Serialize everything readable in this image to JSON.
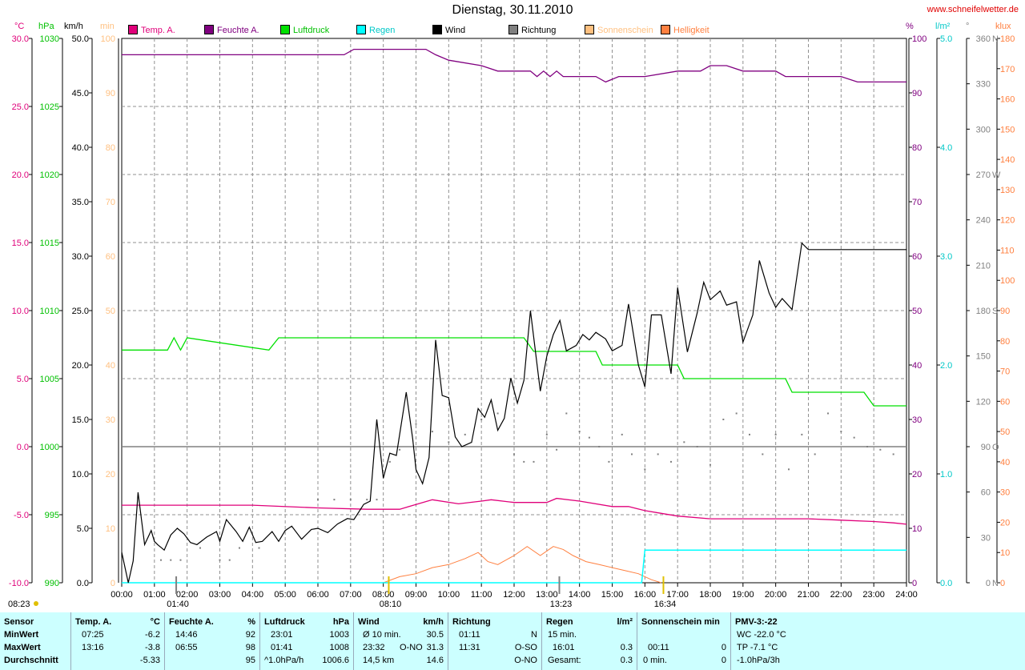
{
  "title": "Dienstag, 30.11.2010",
  "website": "www.schneifelwetter.de",
  "legend": [
    {
      "label": "Temp. A.",
      "color": "#e0007a"
    },
    {
      "label": "Feuchte A.",
      "color": "#800080"
    },
    {
      "label": "Luftdruck",
      "color": "#00e000"
    },
    {
      "label": "Regen",
      "color": "#00ffff"
    },
    {
      "label": "Wind",
      "color": "#000000"
    },
    {
      "label": "Richtung",
      "color": "#808080"
    },
    {
      "label": "Sonnenschein",
      "color": "#ffc080"
    },
    {
      "label": "Helligkeit",
      "color": "#ff8040"
    }
  ],
  "units": {
    "temp": "°C",
    "pressure": "hPa",
    "wind": "km/h",
    "sun": "min",
    "humidity": "%",
    "rain": "l/m²",
    "direction": "°",
    "light": "klux"
  },
  "colors": {
    "temp": "#e0007a",
    "humidity": "#800080",
    "pressure": "#00e000",
    "rain": "#00ffff",
    "wind": "#000000",
    "direction": "#808080",
    "sun": "#ffc080",
    "light": "#ff8040"
  },
  "chart_data": {
    "type": "line",
    "x_range": [
      "00:00",
      "24:00"
    ],
    "x_tick_labels": [
      "00:00",
      "01:00",
      "02:00",
      "03:00",
      "04:00",
      "05:00",
      "06:00",
      "07:00",
      "08:00",
      "09:00",
      "10:00",
      "11:00",
      "12:00",
      "13:00",
      "14:00",
      "15:00",
      "16:00",
      "17:00",
      "18:00",
      "19:00",
      "20:00",
      "21:00",
      "22:00",
      "23:00",
      "24:00"
    ],
    "axes": {
      "temp": {
        "range": [
          -10,
          30
        ],
        "ticks": [
          "-10.0",
          "-5.0",
          "0.0",
          "5.0",
          "10.0",
          "15.0",
          "20.0",
          "25.0",
          "30.0"
        ]
      },
      "pressure": {
        "range": [
          990,
          1030
        ],
        "ticks": [
          "990",
          "995",
          "1000",
          "1005",
          "1010",
          "1015",
          "1020",
          "1025",
          "1030"
        ]
      },
      "wind": {
        "range": [
          0,
          50
        ],
        "ticks": [
          "0.0",
          "5.0",
          "10.0",
          "15.0",
          "20.0",
          "25.0",
          "30.0",
          "35.0",
          "40.0",
          "45.0",
          "50.0"
        ]
      },
      "sun": {
        "range": [
          0,
          100
        ],
        "ticks": [
          "0",
          "10",
          "20",
          "30",
          "40",
          "50",
          "60",
          "70",
          "80",
          "90",
          "100"
        ]
      },
      "humidity": {
        "range": [
          0,
          100
        ],
        "ticks": [
          "0",
          "10",
          "20",
          "30",
          "40",
          "50",
          "60",
          "70",
          "80",
          "90",
          "100"
        ]
      },
      "rain": {
        "range": [
          0,
          5
        ],
        "ticks": [
          "0.0",
          "1.0",
          "2.0",
          "3.0",
          "4.0",
          "5.0"
        ]
      },
      "direction": {
        "range": [
          0,
          360
        ],
        "ticks": [
          "0",
          "N",
          "30",
          "60",
          "90",
          "O",
          "120",
          "150",
          "180",
          "S",
          "210",
          "240",
          "270",
          "W",
          "300",
          "330",
          "360",
          "N"
        ]
      },
      "light": {
        "range": [
          0,
          180
        ],
        "ticks": [
          "0",
          "10",
          "20",
          "30",
          "40",
          "50",
          "60",
          "70",
          "80",
          "90",
          "100",
          "110",
          "120",
          "130",
          "140",
          "150",
          "160",
          "170",
          "180"
        ]
      }
    },
    "markers": {
      "sunrise_time": "08:23",
      "sunset_time": "16:34",
      "moonset_label": "01:40",
      "sunrise_label": "08:10",
      "moonrise_label": "13:23",
      "sunset_label": "16:34"
    },
    "series": {
      "wind_speed": {
        "x": [
          0,
          0.2,
          0.35,
          0.5,
          0.7,
          0.9,
          1.0,
          1.1,
          1.3,
          1.5,
          1.7,
          1.9,
          2.1,
          2.3,
          2.6,
          2.9,
          3.0,
          3.2,
          3.5,
          3.7,
          3.9,
          4.1,
          4.3,
          4.6,
          4.8,
          5.0,
          5.2,
          5.5,
          5.8,
          6.0,
          6.3,
          6.6,
          6.9,
          7.1,
          7.4,
          7.6,
          7.8,
          8.0,
          8.2,
          8.4,
          8.7,
          8.9,
          9.0,
          9.2,
          9.4,
          9.6,
          9.8,
          10.0,
          10.2,
          10.4,
          10.7,
          10.9,
          11.1,
          11.3,
          11.5,
          11.7,
          11.9,
          12.1,
          12.3,
          12.5,
          12.8,
          13.0,
          13.2,
          13.4,
          13.6,
          13.9,
          14.1,
          14.3,
          14.5,
          14.8,
          15.0,
          15.3,
          15.5,
          15.8,
          16.0,
          16.2,
          16.5,
          16.8,
          17.0,
          17.3,
          17.6,
          17.8,
          18.0,
          18.3,
          18.5,
          18.8,
          19.0,
          19.3,
          19.5,
          19.8,
          20.0,
          20.2,
          20.5,
          20.8,
          21.0,
          21.3,
          21.5,
          21.8,
          22.0,
          22.3,
          22.5,
          22.8,
          23.0,
          23.3,
          23.5,
          23.8,
          24.0
        ],
        "y": [
          2.8,
          0.0,
          2.0,
          8.3,
          3.5,
          4.8,
          3.8,
          3.5,
          3.0,
          4.4,
          5.0,
          4.5,
          3.7,
          3.5,
          4.2,
          4.7,
          3.8,
          5.8,
          4.7,
          3.8,
          5.1,
          3.7,
          3.8,
          4.7,
          3.8,
          4.8,
          5.2,
          4.0,
          4.9,
          5.0,
          4.6,
          5.4,
          5.9,
          5.8,
          7.2,
          7.5,
          15.0,
          9.6,
          11.9,
          11.7,
          17.5,
          13.2,
          10.4,
          9.1,
          11.5,
          22.3,
          17.2,
          17.0,
          13.4,
          12.5,
          12.9,
          16.0,
          15.2,
          16.8,
          14.0,
          15.1,
          18.8,
          16.5,
          18.6,
          25.0,
          17.6,
          20.8,
          22.8,
          24.1,
          21.3,
          21.8,
          22.8,
          22.3,
          23.0,
          22.4,
          21.3,
          21.8,
          25.6,
          20.0,
          18.0,
          24.6,
          24.6,
          19.2,
          27.1,
          21.2,
          24.8,
          27.6,
          26.0,
          26.8,
          25.5,
          25.8,
          22.1,
          24.6,
          29.6,
          26.6,
          25.3,
          26.1,
          25.1,
          31.2,
          30.6,
          30.6,
          30.6,
          30.6,
          30.6,
          30.6,
          30.6,
          30.6,
          30.6,
          30.6,
          30.6,
          30.6,
          30.6
        ]
      },
      "temperature": {
        "x": [
          0,
          2,
          4,
          6,
          7.5,
          8.5,
          9.5,
          10.3,
          11.0,
          11.3,
          12.0,
          13.0,
          13.3,
          14.0,
          15.0,
          15.5,
          16.0,
          16.5,
          17.0,
          18.0,
          20.0,
          21.0,
          22.0,
          23.0,
          23.6,
          24.0
        ],
        "y": [
          -4.3,
          -4.3,
          -4.3,
          -4.5,
          -4.6,
          -4.6,
          -3.9,
          -4.2,
          -4.0,
          -3.9,
          -4.1,
          -4.1,
          -3.8,
          -4.0,
          -4.4,
          -4.4,
          -4.7,
          -4.9,
          -5.1,
          -5.3,
          -5.3,
          -5.3,
          -5.4,
          -5.5,
          -5.6,
          -5.7
        ]
      },
      "humidity": {
        "x": [
          0,
          6.8,
          7.1,
          9.3,
          9.6,
          10.0,
          11.0,
          11.5,
          12.5,
          12.7,
          12.9,
          13.1,
          13.3,
          13.5,
          14.0,
          14.5,
          14.8,
          15.2,
          16.0,
          17.0,
          17.7,
          18.0,
          18.5,
          19.0,
          19.5,
          20.0,
          20.3,
          22.0,
          22.5,
          23.5,
          24.0
        ],
        "y": [
          97,
          97,
          98,
          98,
          97,
          96,
          95,
          94,
          94,
          93,
          94,
          93,
          94,
          93,
          93,
          93,
          92,
          93,
          93,
          94,
          94,
          95,
          95,
          94,
          94,
          94,
          93,
          93,
          92,
          92,
          92
        ]
      },
      "pressure": {
        "x": [
          0,
          1.4,
          1.6,
          1.8,
          2.0,
          4.5,
          4.8,
          12.3,
          12.6,
          14.5,
          14.7,
          17.0,
          17.2,
          20.3,
          20.5,
          22.7,
          23.0,
          23.7,
          24.0
        ],
        "y": [
          1007.1,
          1007.1,
          1008.0,
          1007.1,
          1008.0,
          1007.1,
          1008.0,
          1008.0,
          1007.0,
          1007.0,
          1006.0,
          1006.0,
          1005.0,
          1005.0,
          1004.0,
          1004.0,
          1003.0,
          1003.0,
          1003.0
        ]
      },
      "rain": {
        "x": [
          0,
          15.9,
          16.0,
          24.0
        ],
        "y": [
          0.0,
          0.0,
          0.3,
          0.3
        ]
      },
      "light": {
        "x": [
          8.0,
          8.5,
          9.0,
          9.5,
          10.0,
          10.5,
          10.9,
          11.2,
          11.5,
          12.0,
          12.4,
          12.8,
          13.2,
          13.5,
          13.8,
          14.2,
          14.6,
          15.0,
          15.4,
          15.8,
          16.2,
          16.5
        ],
        "y": [
          0,
          2,
          3,
          5,
          6,
          8,
          10,
          7,
          6,
          9,
          12,
          9,
          12,
          11,
          9,
          7,
          6,
          5,
          4,
          3,
          1,
          0
        ]
      },
      "direction": {
        "x": [
          1.2,
          1.5,
          1.8,
          2.4,
          3.0,
          3.3,
          3.6,
          4.2,
          6.0,
          6.5,
          7.0,
          7.5,
          7.8,
          8.2,
          8.5,
          9.0,
          9.5,
          10.0,
          10.5,
          11.0,
          11.5,
          12.0,
          12.3,
          12.6,
          13.0,
          13.3,
          13.6,
          14.0,
          14.3,
          14.6,
          14.9,
          15.3,
          15.6,
          16.0,
          16.4,
          16.8,
          17.2,
          17.6,
          18.0,
          18.4,
          18.8,
          19.2,
          19.6,
          20.0,
          20.4,
          20.8,
          21.2,
          21.6,
          22.0,
          22.4,
          22.8,
          23.2,
          23.6
        ],
        "y": [
          15,
          15,
          15,
          23,
          15,
          15,
          23,
          23,
          55,
          55,
          55,
          55,
          55,
          80,
          88,
          105,
          100,
          93,
          98,
          108,
          112,
          85,
          80,
          80,
          98,
          88,
          112,
          100,
          96,
          90,
          80,
          98,
          85,
          75,
          85,
          80,
          93,
          90,
          78,
          108,
          112,
          98,
          85,
          98,
          75,
          98,
          85,
          112,
          100,
          96,
          90,
          88,
          85
        ]
      }
    }
  },
  "stats": {
    "sensor": {
      "header": "Sensor",
      "rows": [
        "MinWert",
        "MaxWert",
        "Durchschnitt"
      ]
    },
    "temp": {
      "header": "Temp. A.",
      "unit": "°C",
      "min_time": "07:25",
      "min": "-6.2",
      "max_time": "13:16",
      "max": "-3.8",
      "avg": "-5.33"
    },
    "humidity": {
      "header": "Feuchte A.",
      "unit": "%",
      "min_time": "14:46",
      "min": "92",
      "max_time": "06:55",
      "max": "98",
      "avg": "95"
    },
    "pressure": {
      "header": "Luftdruck",
      "unit": "hPa",
      "min_time": "23:01",
      "min": "1003",
      "max_time": "01:41",
      "max": "1008",
      "avg_label": "^1.0hPa/h",
      "avg": "1006.6"
    },
    "wind": {
      "header": "Wind",
      "unit": "km/h",
      "min_label": "Ø 10 min.",
      "min": "30.5",
      "max_time": "23:32",
      "max_dir": "O-NO",
      "max": "31.3",
      "dist": "14,5 km",
      "avg": "14.6"
    },
    "direction": {
      "header": "Richtung",
      "min_time": "01:11",
      "min": "N",
      "max_time": "11:31",
      "max": "O-SO",
      "avg": "O-NO"
    },
    "rain": {
      "header": "Regen",
      "unit": "l/m²",
      "row1_label": "15 min.",
      "row2_label": "16:01",
      "row2": "0.3",
      "row3_label": "Gesamt:",
      "row3": "0.3"
    },
    "sun": {
      "header": "Sonnenschein min",
      "row2_label": "00:11",
      "row2": "0",
      "row3_label": "0 min.",
      "row3": "0"
    },
    "pmv": {
      "header": "PMV-3:-22",
      "wc": "WC -22.0 °C",
      "tp": "TP -7.1 °C",
      "trend": "-1.0hPa/3h"
    }
  }
}
